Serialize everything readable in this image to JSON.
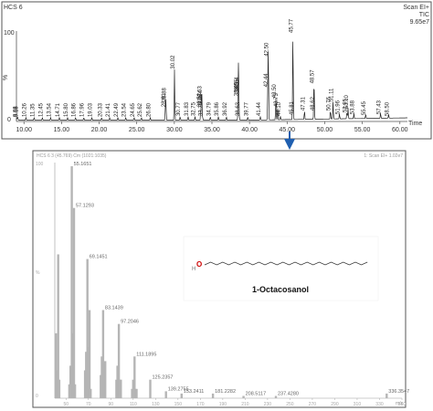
{
  "chart_data": [
    {
      "type": "line",
      "header_left": "HCS 6",
      "header_right": [
        "Scan EI+",
        "TIC",
        "9.65e7"
      ],
      "y_unit_label": "%",
      "y_tick_labels": [
        "100",
        "0"
      ],
      "xlabel": "Time",
      "xlim": [
        9,
        61
      ],
      "ylim": [
        0,
        100
      ],
      "x_ticks": [
        10.0,
        15.0,
        20.0,
        25.0,
        30.0,
        35.0,
        40.0,
        45.0,
        50.0,
        55.0,
        60.0
      ],
      "peaks": [
        {
          "x": 9.08,
          "y": 3,
          "label": "9.08"
        },
        {
          "x": 9.18,
          "y": 3,
          "label": "9.18"
        },
        {
          "x": 10.26,
          "y": 3,
          "label": "10.26"
        },
        {
          "x": 11.35,
          "y": 3,
          "label": "11.35"
        },
        {
          "x": 12.45,
          "y": 3,
          "label": "12.45"
        },
        {
          "x": 13.54,
          "y": 3,
          "label": "13.54"
        },
        {
          "x": 14.71,
          "y": 3,
          "label": "14.71"
        },
        {
          "x": 15.8,
          "y": 3,
          "label": "15.80"
        },
        {
          "x": 16.86,
          "y": 3,
          "label": "16.86"
        },
        {
          "x": 17.96,
          "y": 3,
          "label": "17.96"
        },
        {
          "x": 19.03,
          "y": 3,
          "label": "19.03"
        },
        {
          "x": 20.33,
          "y": 3,
          "label": "20.33"
        },
        {
          "x": 21.41,
          "y": 3,
          "label": "21.41"
        },
        {
          "x": 22.49,
          "y": 3,
          "label": "22.49"
        },
        {
          "x": 23.54,
          "y": 3,
          "label": "23.54"
        },
        {
          "x": 24.65,
          "y": 3,
          "label": "24.65"
        },
        {
          "x": 25.62,
          "y": 3,
          "label": "25.62"
        },
        {
          "x": 26.8,
          "y": 3,
          "label": "26.80"
        },
        {
          "x": 28.81,
          "y": 14,
          "label": "28.81"
        },
        {
          "x": 28.88,
          "y": 20,
          "label": "28.88"
        },
        {
          "x": 30.02,
          "y": 56,
          "label": "30.02"
        },
        {
          "x": 30.77,
          "y": 4,
          "label": "30.77"
        },
        {
          "x": 31.83,
          "y": 4,
          "label": "31.83"
        },
        {
          "x": 32.75,
          "y": 4,
          "label": "32.75"
        },
        {
          "x": 33.52,
          "y": 14,
          "label": "33.52"
        },
        {
          "x": 33.63,
          "y": 22,
          "label": "33.63"
        },
        {
          "x": 33.64,
          "y": 17,
          "label": "33.64"
        },
        {
          "x": 33.75,
          "y": 4,
          "label": "33.75"
        },
        {
          "x": 34.79,
          "y": 4,
          "label": "34.79"
        },
        {
          "x": 35.86,
          "y": 4,
          "label": "35.86"
        },
        {
          "x": 36.92,
          "y": 4,
          "label": "36.92"
        },
        {
          "x": 38.48,
          "y": 26,
          "label": "38.48"
        },
        {
          "x": 38.54,
          "y": 32,
          "label": "38.54"
        },
        {
          "x": 38.55,
          "y": 30,
          "label": "38.55"
        },
        {
          "x": 38.63,
          "y": 4,
          "label": "38.63"
        },
        {
          "x": 39.77,
          "y": 4,
          "label": "39.77"
        },
        {
          "x": 41.44,
          "y": 4,
          "label": "41.44"
        },
        {
          "x": 42.44,
          "y": 36,
          "label": "42.44"
        },
        {
          "x": 42.5,
          "y": 70,
          "label": "42.50"
        },
        {
          "x": 43.5,
          "y": 24,
          "label": "43.50"
        },
        {
          "x": 43.73,
          "y": 14,
          "label": "43.73"
        },
        {
          "x": 44.1,
          "y": 4,
          "label": "44.10"
        },
        {
          "x": 45.77,
          "y": 96,
          "label": "45.77"
        },
        {
          "x": 45.81,
          "y": 5,
          "label": "45.81"
        },
        {
          "x": 47.31,
          "y": 10,
          "label": "47.31"
        },
        {
          "x": 48.57,
          "y": 40,
          "label": "48.57"
        },
        {
          "x": 48.62,
          "y": 10,
          "label": "48.62"
        },
        {
          "x": 50.76,
          "y": 10,
          "label": "50.76"
        },
        {
          "x": 51.11,
          "y": 20,
          "label": "51.11"
        },
        {
          "x": 51.96,
          "y": 6,
          "label": "51.96"
        },
        {
          "x": 52.95,
          "y": 8,
          "label": "52.95"
        },
        {
          "x": 53.1,
          "y": 12,
          "label": "53.10"
        },
        {
          "x": 53.88,
          "y": 6,
          "label": "53.88"
        },
        {
          "x": 55.45,
          "y": 5,
          "label": "55.45"
        },
        {
          "x": 57.43,
          "y": 6,
          "label": "57.43"
        },
        {
          "x": 58.5,
          "y": 4,
          "label": "58.50"
        }
      ]
    },
    {
      "type": "bar",
      "header_left": "HCS 6 3 (45.769) Cm (1021:1035)",
      "header_right": "1: Scan EI+ 1.02e7",
      "y_tick_labels": [
        "100",
        "%",
        "0"
      ],
      "xlabel": "m/z",
      "xlim": [
        40,
        350
      ],
      "ylim": [
        0,
        100
      ],
      "x_tick_labels": [
        "50",
        "70",
        "90",
        "110",
        "130",
        "150",
        "170",
        "190",
        "210",
        "230",
        "250",
        "270",
        "290",
        "310",
        "330",
        "350"
      ],
      "peaks": [
        {
          "x": 41,
          "y": 28
        },
        {
          "x": 42,
          "y": 12
        },
        {
          "x": 43,
          "y": 62
        },
        {
          "x": 44,
          "y": 8
        },
        {
          "x": 53,
          "y": 6
        },
        {
          "x": 54,
          "y": 14
        },
        {
          "x": 55.1651,
          "y": 100,
          "label": "55.1651"
        },
        {
          "x": 56,
          "y": 28
        },
        {
          "x": 57.1293,
          "y": 82,
          "label": "57.1293"
        },
        {
          "x": 58,
          "y": 6
        },
        {
          "x": 67,
          "y": 12
        },
        {
          "x": 68,
          "y": 20
        },
        {
          "x": 69.1451,
          "y": 60,
          "label": "69.1451"
        },
        {
          "x": 70,
          "y": 22
        },
        {
          "x": 71,
          "y": 38
        },
        {
          "x": 72,
          "y": 4
        },
        {
          "x": 81,
          "y": 10
        },
        {
          "x": 82,
          "y": 18
        },
        {
          "x": 83.1439,
          "y": 38,
          "label": "83.1439"
        },
        {
          "x": 84,
          "y": 14
        },
        {
          "x": 85,
          "y": 16
        },
        {
          "x": 95,
          "y": 8
        },
        {
          "x": 96,
          "y": 14
        },
        {
          "x": 97.2046,
          "y": 32,
          "label": "97.2046"
        },
        {
          "x": 98,
          "y": 8
        },
        {
          "x": 99,
          "y": 8
        },
        {
          "x": 109,
          "y": 4
        },
        {
          "x": 110,
          "y": 8
        },
        {
          "x": 111.1895,
          "y": 18,
          "label": "111.1895"
        },
        {
          "x": 112,
          "y": 4
        },
        {
          "x": 113,
          "y": 4
        },
        {
          "x": 125.2357,
          "y": 8,
          "label": "125.2357"
        },
        {
          "x": 139.2755,
          "y": 3,
          "label": "139.2755"
        },
        {
          "x": 153.2411,
          "y": 2,
          "label": "153.2411"
        },
        {
          "x": 181.2282,
          "y": 2,
          "label": "181.2282"
        },
        {
          "x": 208.5117,
          "y": 1,
          "label": "208.5117"
        },
        {
          "x": 237.428,
          "y": 1,
          "label": "237.4280"
        },
        {
          "x": 336.3547,
          "y": 2,
          "label": "336.3547"
        }
      ]
    }
  ],
  "structure": {
    "atom_label": "O",
    "compound_name": "1-Octacosanol"
  },
  "colors": {
    "trace": "#222222",
    "spectrum_bars": "#b5b5b5",
    "oxygen": "#cc0000",
    "arrow": "#1f5fb0",
    "frame": "#555555"
  }
}
